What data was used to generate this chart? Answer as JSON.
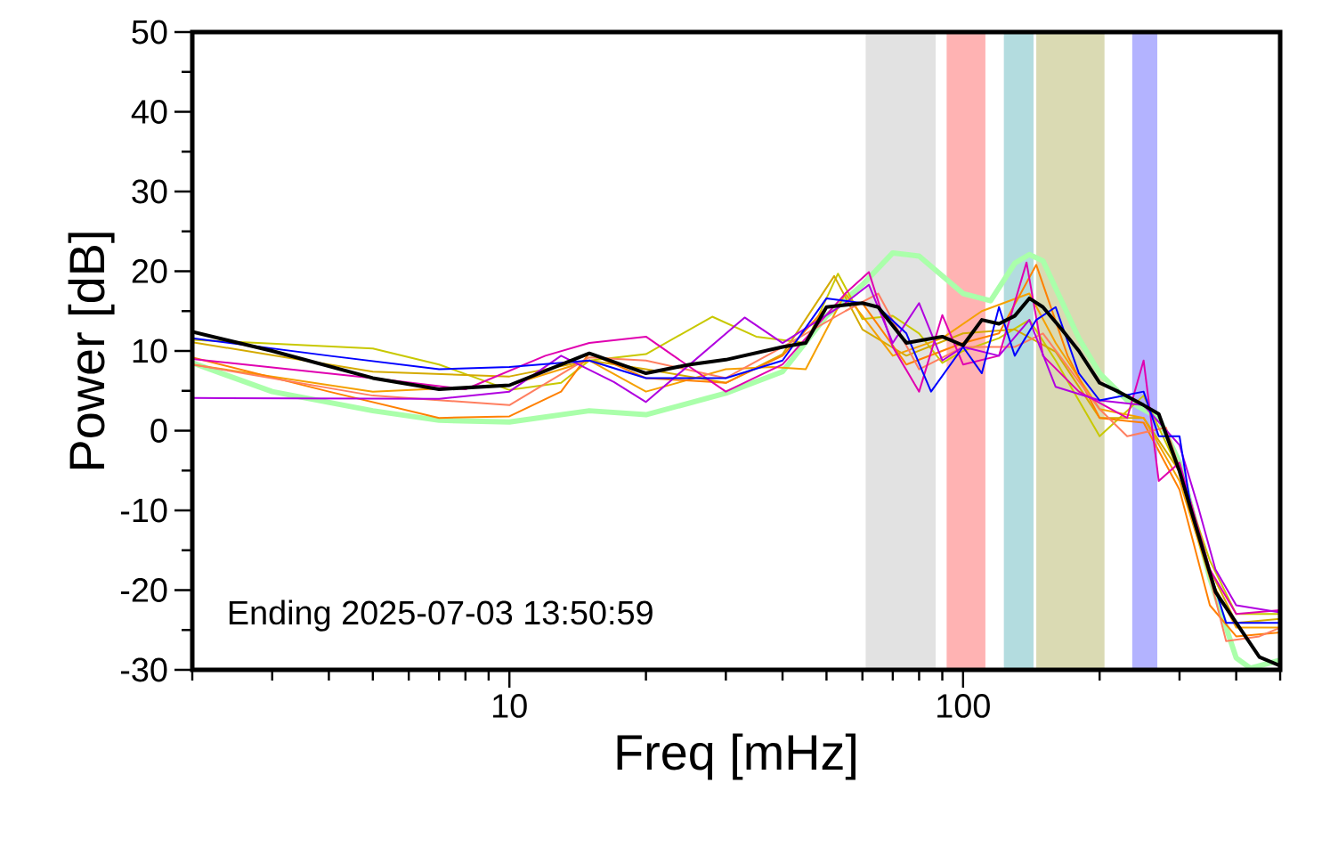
{
  "chart_data": {
    "type": "line",
    "xlabel": "Freq [mHz]",
    "ylabel": "Power [dB]",
    "log": "x",
    "xlim": [
      2,
      500
    ],
    "ylim": [
      -30,
      50
    ],
    "xticks": [
      {
        "value": 2,
        "label": null
      },
      {
        "value": 3,
        "label": null
      },
      {
        "value": 4,
        "label": null
      },
      {
        "value": 5,
        "label": null
      },
      {
        "value": 6,
        "label": null
      },
      {
        "value": 7,
        "label": null
      },
      {
        "value": 8,
        "label": null
      },
      {
        "value": 9,
        "label": null
      },
      10,
      {
        "value": 20,
        "label": null
      },
      {
        "value": 30,
        "label": null
      },
      {
        "value": 40,
        "label": null
      },
      {
        "value": 50,
        "label": null
      },
      {
        "value": 60,
        "label": null
      },
      {
        "value": 70,
        "label": null
      },
      {
        "value": 80,
        "label": null
      },
      {
        "value": 90,
        "label": null
      },
      100,
      {
        "value": 200,
        "label": null
      },
      {
        "value": 300,
        "label": null
      },
      {
        "value": 400,
        "label": null
      },
      {
        "value": 500,
        "label": null
      }
    ],
    "yticks": [
      -30,
      {
        "value": -25,
        "label": null
      },
      -20,
      {
        "value": -15,
        "label": null
      },
      -10,
      {
        "value": -5,
        "label": null
      },
      0,
      {
        "value": 5,
        "label": null
      },
      10,
      {
        "value": 15,
        "label": null
      },
      20,
      {
        "value": 25,
        "label": null
      },
      30,
      {
        "value": 35,
        "label": null
      },
      40,
      {
        "value": 45,
        "label": null
      },
      50
    ],
    "bands": [
      {
        "axis": "x",
        "from": 61,
        "to": 87,
        "color": "#e2e2e2"
      },
      {
        "axis": "x",
        "from": 92,
        "to": 112,
        "color": "#ffb3b3"
      },
      {
        "axis": "x",
        "from": 123,
        "to": 143,
        "color": "#b3dcdf"
      },
      {
        "axis": "x",
        "from": 145,
        "to": 205,
        "color": "#dadab3"
      },
      {
        "axis": "x",
        "from": 236,
        "to": 268,
        "color": "#b3b3ff"
      }
    ],
    "annotations": [
      "Ending 2025-07-03 13:50:59"
    ],
    "series": [
      {
        "color": "#aaffaa",
        "x": [
          2,
          3,
          5,
          7,
          10,
          15,
          20,
          30,
          40,
          50,
          60,
          70,
          80,
          100,
          115,
          130,
          140,
          150,
          180,
          200,
          230,
          270,
          300,
          350,
          400,
          430,
          500
        ],
        "values": [
          8.5,
          4.9,
          2.5,
          1.3,
          1.1,
          2.5,
          2,
          4.7,
          7.4,
          14.4,
          18.3,
          22.3,
          21.9,
          17.2,
          16.3,
          21,
          22.1,
          21.3,
          11.6,
          7.2,
          3.8,
          1.6,
          -4,
          -18.5,
          -28.5,
          -29.8,
          -28.8
        ]
      },
      {
        "color": "#c8c800",
        "x": [
          2,
          5,
          7,
          10,
          13,
          15,
          20,
          28,
          35,
          45,
          53,
          60,
          70,
          80,
          90,
          100,
          120,
          140,
          160,
          200,
          250,
          300,
          350,
          400,
          500
        ],
        "values": [
          11.4,
          10.3,
          8.3,
          5.1,
          6,
          8.8,
          9.6,
          14.3,
          11.8,
          11,
          19.7,
          14,
          14.4,
          12.2,
          8.5,
          10,
          11.6,
          13.9,
          8.8,
          -0.7,
          4.4,
          -5.1,
          -16.3,
          -23,
          -23
        ]
      },
      {
        "color": "#d4aa00",
        "x": [
          2,
          5,
          10,
          15,
          20,
          30,
          40,
          52,
          60,
          75,
          100,
          130,
          160,
          200,
          250,
          300,
          350,
          400,
          500
        ],
        "values": [
          11.1,
          7.4,
          6.8,
          8.8,
          7.7,
          6,
          9.6,
          19.4,
          12.7,
          9.4,
          12.2,
          12.7,
          9.9,
          1.6,
          1.6,
          -5.1,
          -17.4,
          -24.1,
          -23.6
        ]
      },
      {
        "color": "#f5a000",
        "x": [
          2,
          5,
          10,
          15,
          20,
          30,
          38,
          45,
          55,
          70,
          90,
          110,
          140,
          160,
          200,
          250,
          300,
          350,
          400,
          500
        ],
        "values": [
          8.3,
          4.9,
          5.7,
          8.8,
          4.9,
          7.7,
          8,
          7.7,
          17.2,
          9.4,
          11.6,
          15,
          17.2,
          11,
          2.7,
          1.6,
          -6.3,
          -18.5,
          -24.7,
          -24.7
        ]
      },
      {
        "color": "#ff8000",
        "x": [
          2,
          4,
          7,
          10,
          13,
          15,
          20,
          30,
          40,
          50,
          60,
          75,
          100,
          120,
          145,
          170,
          200,
          250,
          300,
          350,
          400,
          500
        ],
        "values": [
          9.2,
          4.9,
          1.6,
          1.8,
          4.9,
          9.7,
          6.6,
          6,
          9.4,
          15.5,
          16,
          8.3,
          11,
          12.2,
          20.8,
          9.4,
          1.6,
          1,
          -7.4,
          -21.9,
          -25.8,
          -25.3
        ]
      },
      {
        "color": "#ff7f60",
        "x": [
          2,
          5,
          10,
          15,
          20,
          30,
          40,
          55,
          65,
          80,
          100,
          130,
          150,
          200,
          230,
          280,
          320,
          380,
          450,
          500
        ],
        "values": [
          8.3,
          4.4,
          3.2,
          9.2,
          8.8,
          6.6,
          10.5,
          15,
          17.2,
          7.7,
          10.5,
          10.5,
          12.2,
          2.7,
          -0.7,
          0.4,
          -9.6,
          -26.4,
          -25.8,
          -24.7
        ]
      },
      {
        "color": "#e000b0",
        "x": [
          2,
          5,
          8,
          12,
          15,
          20,
          23,
          30,
          40,
          55,
          62,
          70,
          80,
          90,
          100,
          120,
          138,
          150,
          180,
          230,
          250,
          270,
          300,
          350,
          400,
          500
        ],
        "values": [
          9,
          6.6,
          5.2,
          9.4,
          11,
          11.8,
          9.4,
          4.9,
          8.3,
          17.2,
          19.9,
          10.5,
          4.9,
          14.5,
          8.3,
          9.4,
          21.1,
          9.4,
          4.9,
          1.6,
          8.8,
          -6.3,
          -4,
          -17.4,
          -23,
          -22.5
        ]
      },
      {
        "color": "#b000e0",
        "x": [
          2,
          7,
          10,
          13,
          17,
          20,
          33,
          40,
          55,
          62,
          70,
          80,
          90,
          100,
          120,
          140,
          160,
          200,
          250,
          300,
          330,
          360,
          400,
          500
        ],
        "values": [
          4.1,
          4,
          4.9,
          9.4,
          6.1,
          3.6,
          14.2,
          11,
          16,
          18.3,
          11,
          16,
          8.8,
          10.5,
          9.4,
          13.9,
          5.5,
          3.8,
          3.2,
          -1.8,
          -9.6,
          -17.4,
          -21.9,
          -22.8
        ]
      },
      {
        "color": "#0000ff",
        "x": [
          2,
          4,
          7,
          10,
          15,
          20,
          30,
          40,
          50,
          60,
          65,
          75,
          85,
          100,
          110,
          120,
          130,
          145,
          160,
          180,
          200,
          250,
          270,
          300,
          320,
          380,
          500
        ],
        "values": [
          11.6,
          9.4,
          7.7,
          8,
          8.8,
          6.6,
          6.6,
          8.8,
          16.6,
          16,
          15.5,
          12.2,
          4.9,
          10.5,
          7.2,
          15.5,
          9.4,
          13.9,
          15.5,
          7.2,
          3.8,
          4.9,
          -0.7,
          -0.7,
          -10.7,
          -24.1,
          -24.1
        ]
      },
      {
        "color": "#000000",
        "x": [
          2,
          3,
          5,
          7,
          10,
          15,
          20,
          25,
          30,
          40,
          45,
          50,
          60,
          65,
          75,
          90,
          100,
          110,
          120,
          130,
          140,
          150,
          165,
          180,
          200,
          220,
          250,
          270,
          300,
          330,
          360,
          400,
          450,
          500
        ],
        "values": [
          12.4,
          10,
          6.6,
          5.2,
          5.7,
          9.7,
          7.2,
          8.3,
          8.9,
          10.5,
          11,
          15.5,
          16,
          15.5,
          11,
          11.8,
          10.7,
          13.9,
          13.4,
          14.4,
          16.6,
          15.5,
          12.7,
          10,
          6,
          4.9,
          3.2,
          2.1,
          -5.1,
          -13,
          -20.2,
          -24.1,
          -28.4,
          -29.5
        ]
      }
    ]
  }
}
